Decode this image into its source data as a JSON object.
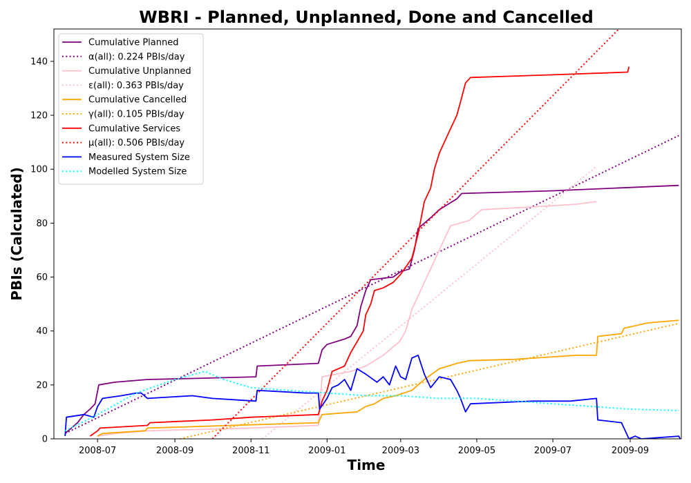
{
  "chart_data": {
    "type": "line",
    "title": "WBRI - Planned, Unplanned, Done  and Cancelled",
    "xlabel": "Time",
    "ylabel": "PBIs (Calculated)",
    "xlim": [
      "2008-05-27",
      "2009-10-12"
    ],
    "ylim": [
      0,
      152
    ],
    "x_ticks": [
      "2008-07",
      "2008-09",
      "2008-11",
      "2009-01",
      "2009-03",
      "2009-05",
      "2009-07",
      "2009-09"
    ],
    "y_ticks": [
      0,
      20,
      40,
      60,
      80,
      100,
      120,
      140
    ],
    "grid": false,
    "legend_position": "upper-left",
    "series": [
      {
        "name": "Cumulative Planned",
        "color": "#800080",
        "style": "solid",
        "points": [
          [
            "2008-06-05",
            2
          ],
          [
            "2008-06-10",
            4
          ],
          [
            "2008-06-15",
            6
          ],
          [
            "2008-06-20",
            9
          ],
          [
            "2008-06-25",
            11
          ],
          [
            "2008-06-29",
            13
          ],
          [
            "2008-07-02",
            20
          ],
          [
            "2008-07-15",
            21
          ],
          [
            "2008-08-10",
            22
          ],
          [
            "2008-09-15",
            22.4
          ],
          [
            "2008-10-20",
            22.8
          ],
          [
            "2008-11-05",
            23
          ],
          [
            "2008-11-06",
            27
          ],
          [
            "2008-12-25",
            28
          ],
          [
            "2008-12-28",
            33
          ],
          [
            "2009-01-01",
            35
          ],
          [
            "2009-01-15",
            37
          ],
          [
            "2009-01-20",
            38
          ],
          [
            "2009-01-25",
            42
          ],
          [
            "2009-01-28",
            49
          ],
          [
            "2009-02-01",
            55
          ],
          [
            "2009-02-05",
            59
          ],
          [
            "2009-02-23",
            60
          ],
          [
            "2009-03-01",
            62
          ],
          [
            "2009-03-08",
            63
          ],
          [
            "2009-03-12",
            70
          ],
          [
            "2009-03-15",
            78
          ],
          [
            "2009-03-25",
            82
          ],
          [
            "2009-04-01",
            85
          ],
          [
            "2009-04-08",
            87
          ],
          [
            "2009-04-15",
            89
          ],
          [
            "2009-04-19",
            91
          ],
          [
            "2009-07-01",
            92
          ],
          [
            "2009-10-10",
            94
          ]
        ]
      },
      {
        "name": "α(all): 0.224 PBIs/day",
        "color": "#800080",
        "style": "dotted",
        "points": [
          [
            "2008-06-05",
            2
          ],
          [
            "2009-10-10",
            112.5
          ]
        ]
      },
      {
        "name": "Cumulative Unplanned",
        "color": "#ffc0cb",
        "style": "solid",
        "points": [
          [
            "2008-07-01",
            1
          ],
          [
            "2008-07-15",
            2
          ],
          [
            "2008-08-10",
            3
          ],
          [
            "2008-11-01",
            4
          ],
          [
            "2008-12-25",
            5
          ],
          [
            "2008-12-28",
            23
          ],
          [
            "2009-01-20",
            25
          ],
          [
            "2009-02-01",
            27
          ],
          [
            "2009-02-15",
            31
          ],
          [
            "2009-02-28",
            36
          ],
          [
            "2009-03-05",
            40
          ],
          [
            "2009-03-10",
            48
          ],
          [
            "2009-03-20",
            58
          ],
          [
            "2009-04-01",
            70
          ],
          [
            "2009-04-10",
            79
          ],
          [
            "2009-04-25",
            81
          ],
          [
            "2009-05-05",
            85
          ],
          [
            "2009-06-15",
            86
          ],
          [
            "2009-07-20",
            87
          ],
          [
            "2009-08-05",
            88
          ]
        ]
      },
      {
        "name": "ε(all): 0.363 PBIs/day",
        "color": "#ffc0cb",
        "style": "dotted",
        "points": [
          [
            "2008-11-10",
            0
          ],
          [
            "2009-08-05",
            101
          ]
        ]
      },
      {
        "name": "Cumulative Cancelled",
        "color": "#ffa500",
        "style": "solid",
        "points": [
          [
            "2008-07-01",
            1
          ],
          [
            "2008-07-05",
            2
          ],
          [
            "2008-08-08",
            3
          ],
          [
            "2008-08-10",
            4
          ],
          [
            "2008-12-25",
            6
          ],
          [
            "2008-12-28",
            9
          ],
          [
            "2009-01-25",
            10
          ],
          [
            "2009-02-01",
            12
          ],
          [
            "2009-02-08",
            13
          ],
          [
            "2009-02-15",
            15
          ],
          [
            "2009-02-25",
            16
          ],
          [
            "2009-03-10",
            18
          ],
          [
            "2009-03-20",
            22
          ],
          [
            "2009-04-01",
            26
          ],
          [
            "2009-04-15",
            28
          ],
          [
            "2009-04-25",
            29
          ],
          [
            "2009-06-01",
            29.5
          ],
          [
            "2009-07-20",
            31
          ],
          [
            "2009-08-05",
            31
          ],
          [
            "2009-08-06",
            38
          ],
          [
            "2009-08-25",
            39
          ],
          [
            "2009-08-27",
            41
          ],
          [
            "2009-09-15",
            43
          ],
          [
            "2009-10-10",
            44
          ]
        ]
      },
      {
        "name": "γ(all): 0.105 PBIs/day",
        "color": "#ffa500",
        "style": "dotted",
        "points": [
          [
            "2008-09-05",
            0
          ],
          [
            "2009-10-10",
            42.8
          ]
        ]
      },
      {
        "name": "Cumulative Services",
        "color": "#ff0000",
        "style": "solid",
        "points": [
          [
            "2008-06-25",
            1
          ],
          [
            "2008-07-01",
            3
          ],
          [
            "2008-07-03",
            4
          ],
          [
            "2008-08-10",
            5
          ],
          [
            "2008-08-12",
            6
          ],
          [
            "2008-10-01",
            7
          ],
          [
            "2008-11-01",
            8
          ],
          [
            "2008-12-25",
            9
          ],
          [
            "2008-12-28",
            14
          ],
          [
            "2009-01-01",
            18
          ],
          [
            "2009-01-05",
            25
          ],
          [
            "2009-01-15",
            27
          ],
          [
            "2009-01-20",
            32
          ],
          [
            "2009-01-25",
            36
          ],
          [
            "2009-01-30",
            40
          ],
          [
            "2009-02-01",
            46
          ],
          [
            "2009-02-05",
            50
          ],
          [
            "2009-02-08",
            55
          ],
          [
            "2009-02-15",
            56
          ],
          [
            "2009-02-23",
            58
          ],
          [
            "2009-03-01",
            61
          ],
          [
            "2009-03-10",
            67
          ],
          [
            "2009-03-15",
            76
          ],
          [
            "2009-03-20",
            88
          ],
          [
            "2009-03-25",
            93
          ],
          [
            "2009-03-28",
            100
          ],
          [
            "2009-04-01",
            106
          ],
          [
            "2009-04-05",
            110
          ],
          [
            "2009-04-10",
            115
          ],
          [
            "2009-04-15",
            120
          ],
          [
            "2009-04-18",
            125
          ],
          [
            "2009-04-22",
            132
          ],
          [
            "2009-04-26",
            134
          ],
          [
            "2009-07-01",
            135
          ],
          [
            "2009-08-30",
            136
          ],
          [
            "2009-08-31",
            138
          ]
        ]
      },
      {
        "name": "μ(all): 0.506 PBIs/day",
        "color": "#ff0000",
        "style": "dotted",
        "points": [
          [
            "2008-10-01",
            0
          ],
          [
            "2009-08-23",
            152
          ]
        ]
      },
      {
        "name": "Measured System Size",
        "color": "#0000ff",
        "style": "solid",
        "points": [
          [
            "2008-06-05",
            1
          ],
          [
            "2008-06-06",
            8
          ],
          [
            "2008-06-20",
            9
          ],
          [
            "2008-06-28",
            8
          ],
          [
            "2008-07-01",
            12
          ],
          [
            "2008-07-05",
            15
          ],
          [
            "2008-07-20",
            16
          ],
          [
            "2008-08-01",
            17
          ],
          [
            "2008-08-05",
            17
          ],
          [
            "2008-08-10",
            15
          ],
          [
            "2008-09-15",
            16
          ],
          [
            "2008-10-01",
            15
          ],
          [
            "2008-11-05",
            14
          ],
          [
            "2008-11-06",
            18
          ],
          [
            "2008-12-15",
            17
          ],
          [
            "2008-12-25",
            17
          ],
          [
            "2008-12-26",
            11
          ],
          [
            "2009-01-01",
            15
          ],
          [
            "2009-01-05",
            19
          ],
          [
            "2009-01-10",
            20
          ],
          [
            "2009-01-15",
            22
          ],
          [
            "2009-01-20",
            18
          ],
          [
            "2009-01-25",
            26
          ],
          [
            "2009-02-01",
            24
          ],
          [
            "2009-02-10",
            21
          ],
          [
            "2009-02-15",
            23
          ],
          [
            "2009-02-20",
            20
          ],
          [
            "2009-02-25",
            27
          ],
          [
            "2009-03-01",
            23
          ],
          [
            "2009-03-05",
            22
          ],
          [
            "2009-03-10",
            30
          ],
          [
            "2009-03-15",
            31
          ],
          [
            "2009-03-20",
            24
          ],
          [
            "2009-03-25",
            19
          ],
          [
            "2009-04-01",
            23
          ],
          [
            "2009-04-10",
            22
          ],
          [
            "2009-04-15",
            18
          ],
          [
            "2009-04-18",
            15
          ],
          [
            "2009-04-22",
            10
          ],
          [
            "2009-04-26",
            13
          ],
          [
            "2009-06-15",
            14
          ],
          [
            "2009-07-15",
            14
          ],
          [
            "2009-08-05",
            15
          ],
          [
            "2009-08-06",
            7
          ],
          [
            "2009-08-25",
            6
          ],
          [
            "2009-08-28",
            3
          ],
          [
            "2009-08-31",
            0
          ],
          [
            "2009-09-05",
            1
          ],
          [
            "2009-09-10",
            0
          ],
          [
            "2009-10-10",
            1
          ],
          [
            "2009-10-11",
            0
          ]
        ]
      },
      {
        "name": "Modelled System Size",
        "color": "#00ffff",
        "style": "dotted",
        "points": [
          [
            "2008-06-05",
            3
          ],
          [
            "2008-07-01",
            9
          ],
          [
            "2008-08-01",
            17
          ],
          [
            "2008-09-01",
            22
          ],
          [
            "2008-09-25",
            25
          ],
          [
            "2008-10-10",
            22
          ],
          [
            "2008-11-01",
            19
          ],
          [
            "2008-12-01",
            18
          ],
          [
            "2009-01-01",
            17
          ],
          [
            "2009-02-01",
            16
          ],
          [
            "2009-03-01",
            16
          ],
          [
            "2009-04-01",
            15
          ],
          [
            "2009-05-01",
            15
          ],
          [
            "2009-06-01",
            14
          ],
          [
            "2009-07-01",
            13
          ],
          [
            "2009-08-01",
            12
          ],
          [
            "2009-09-01",
            11
          ],
          [
            "2009-10-10",
            10.5
          ]
        ]
      }
    ]
  }
}
